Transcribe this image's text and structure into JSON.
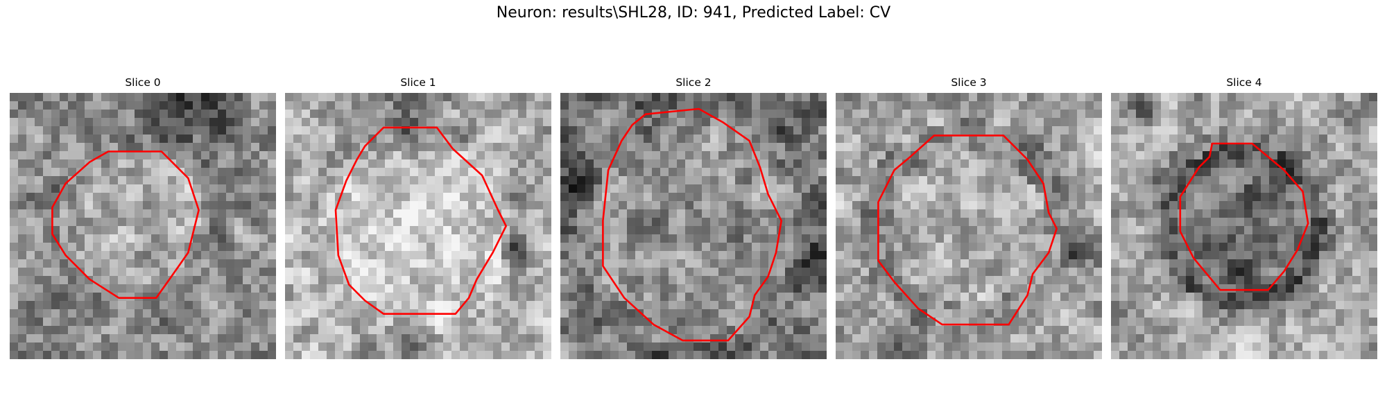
{
  "figure": {
    "title": "Neuron: results\\SHL28, ID: 941, Predicted Label: CV",
    "contour_color": "#ff0000"
  },
  "slices": [
    {
      "title": "Slice 0"
    },
    {
      "title": "Slice 1"
    },
    {
      "title": "Slice 2"
    },
    {
      "title": "Slice 3"
    },
    {
      "title": "Slice 4"
    }
  ]
}
